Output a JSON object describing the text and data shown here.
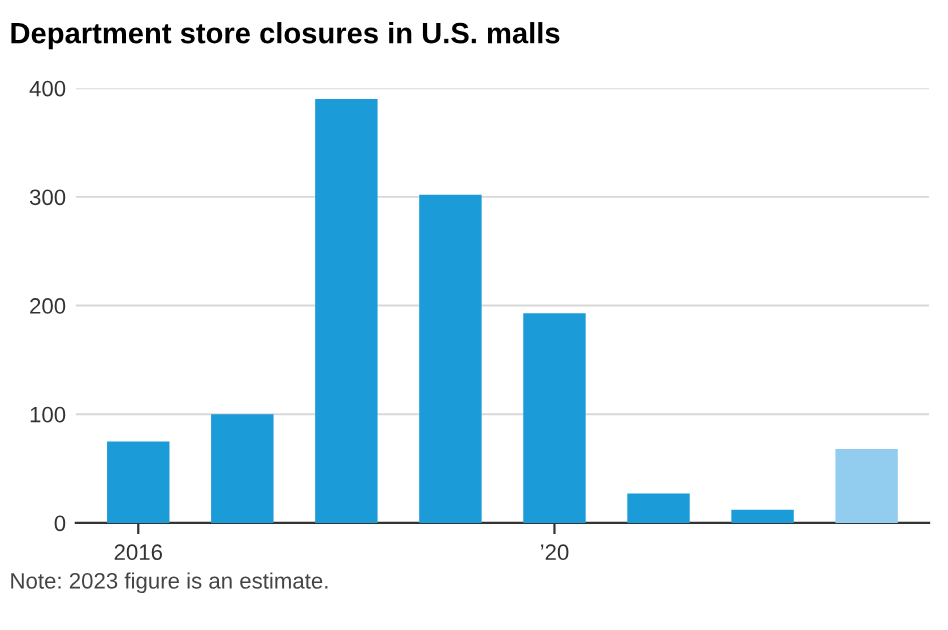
{
  "chart_data": {
    "type": "bar",
    "title": "Department store closures in U.S. malls",
    "categories": [
      "2016",
      null,
      null,
      null,
      "’20",
      null,
      null,
      null
    ],
    "values": [
      75,
      100,
      390,
      302,
      193,
      27,
      12,
      68
    ],
    "colors": [
      "#1b9bd7",
      "#1b9bd7",
      "#1b9bd7",
      "#1b9bd7",
      "#1b9bd7",
      "#1b9bd7",
      "#1b9bd7",
      "#92cdf0"
    ],
    "ylim": [
      0,
      400
    ],
    "yticks": [
      0,
      100,
      200,
      300,
      400
    ],
    "grid": "y",
    "annotations": [
      "Note: 2023 figure is an estimate."
    ]
  }
}
